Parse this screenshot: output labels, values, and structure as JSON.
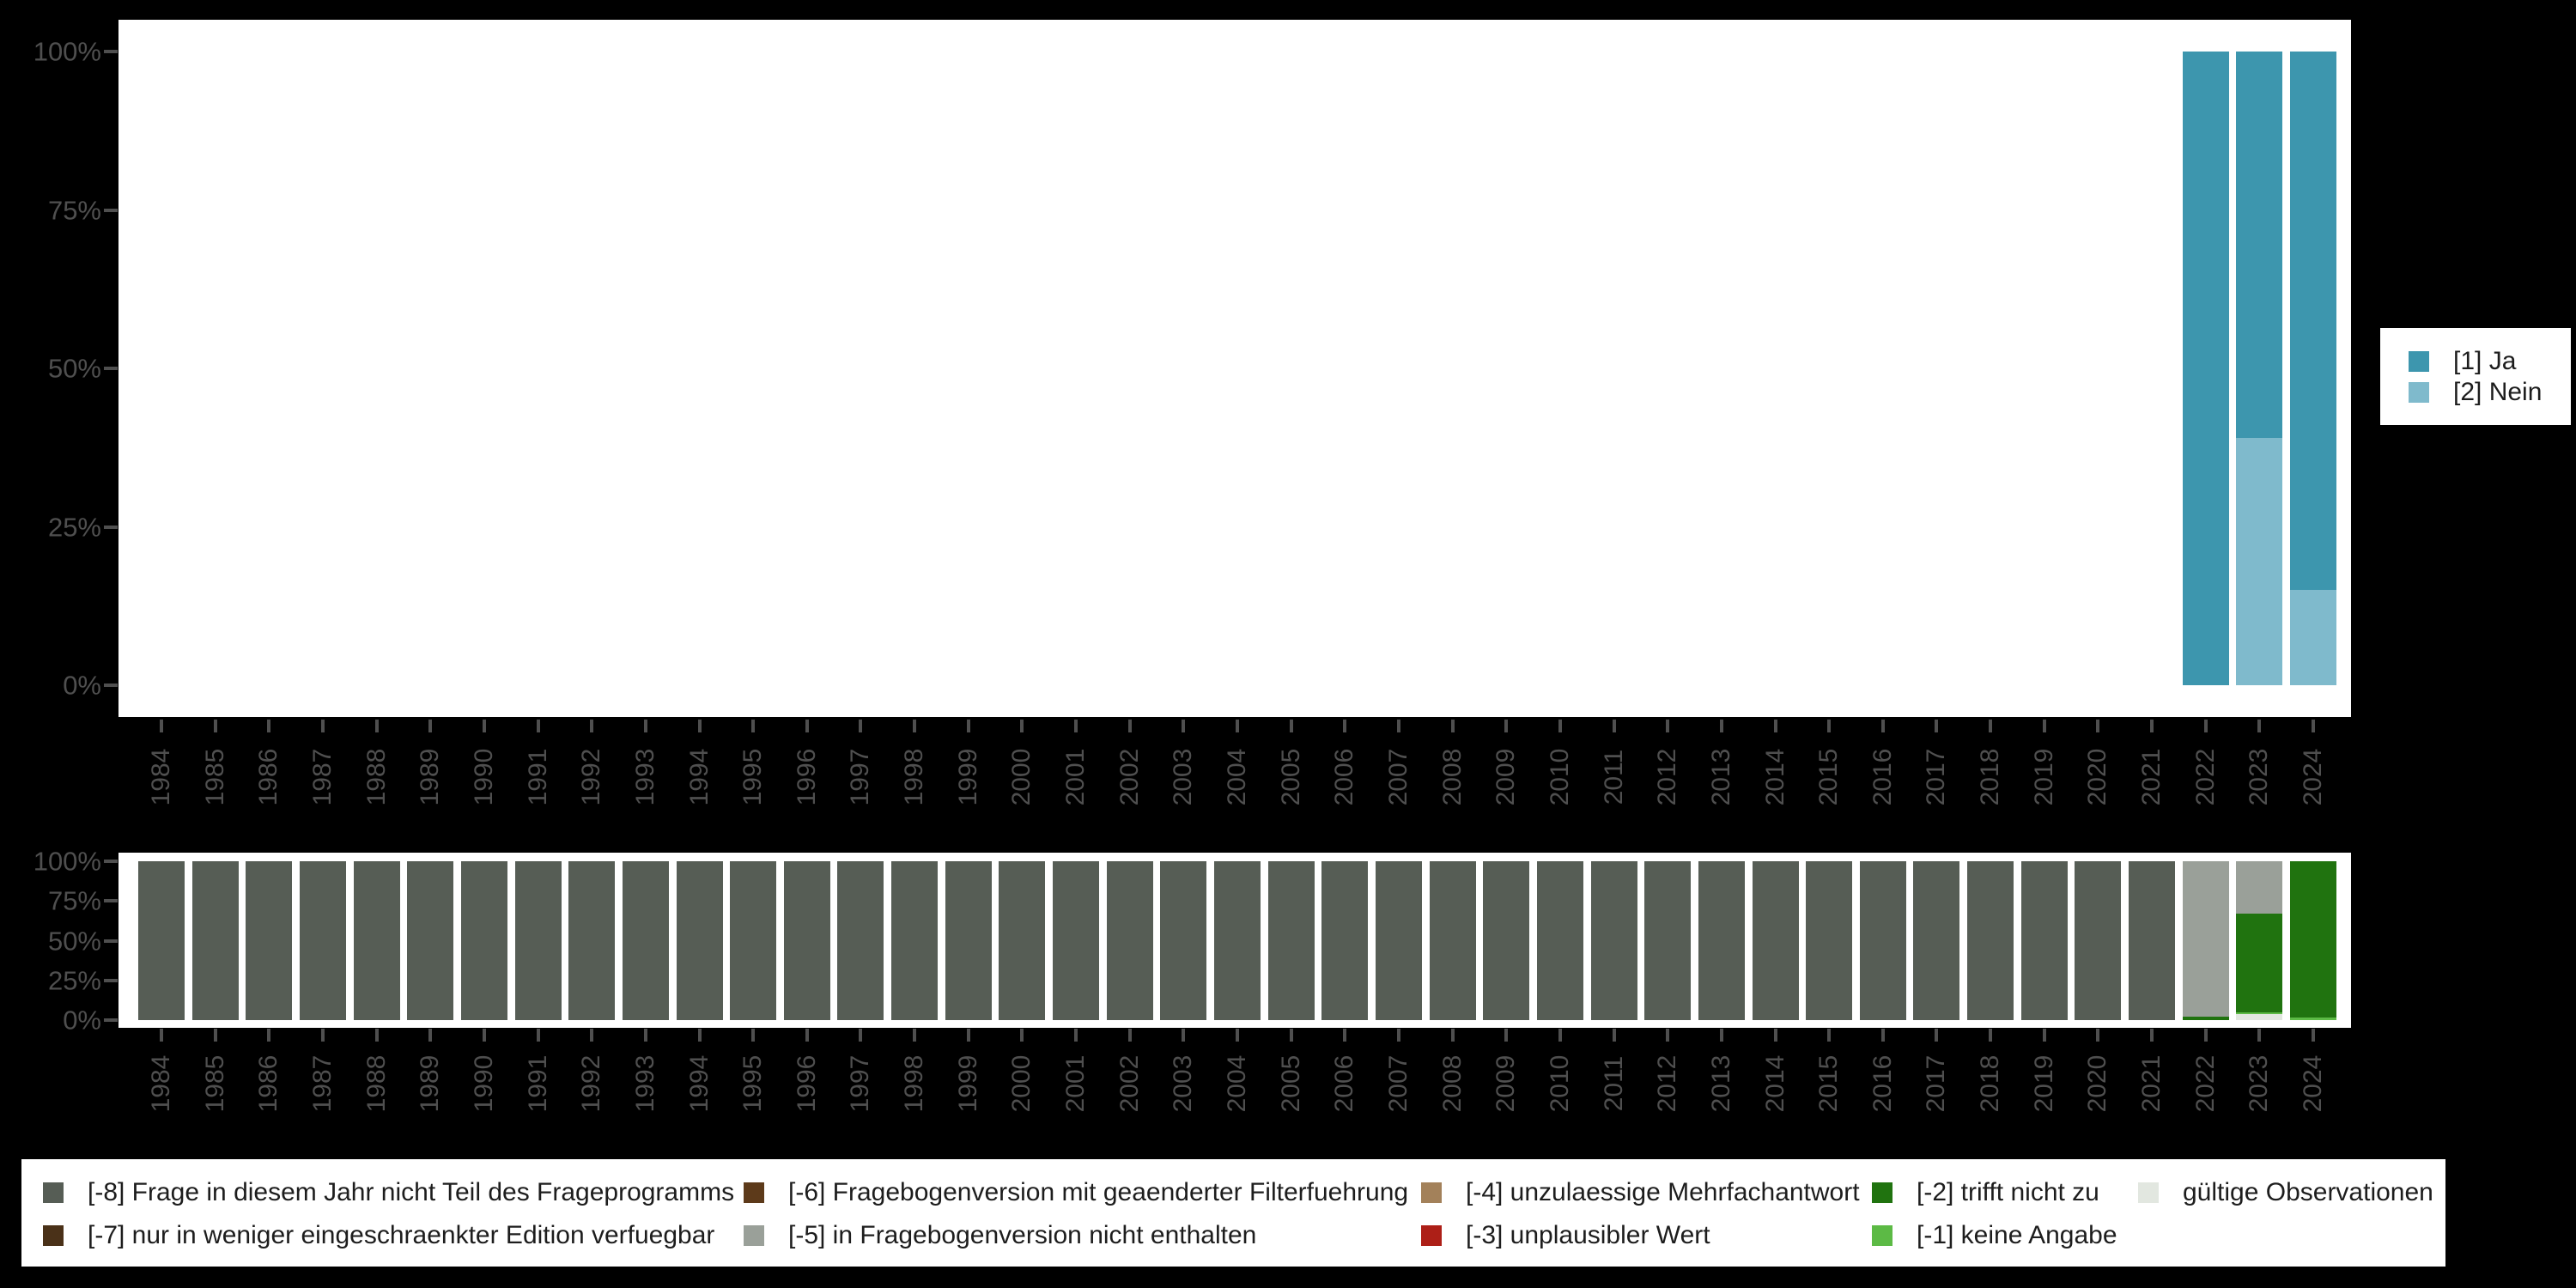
{
  "colors": {
    "background": "#000000",
    "panel": "#ffffff",
    "axis_text": "#4f4f4f",
    "legend_text": "#1d1d1d",
    "legend_background": "#ffffff"
  },
  "y_axis": {
    "tick_labels": [
      "100%",
      "75%",
      "50%",
      "25%",
      "0%"
    ]
  },
  "chart_data": [
    {
      "type": "bar",
      "stacked": true,
      "title": "",
      "xlabel": "",
      "ylabel": "",
      "ylim": [
        0,
        100
      ],
      "grid": false,
      "legend_position": "right",
      "x": [
        1984,
        1985,
        1986,
        1987,
        1988,
        1989,
        1990,
        1991,
        1992,
        1993,
        1994,
        1995,
        1996,
        1997,
        1998,
        1999,
        2000,
        2001,
        2002,
        2003,
        2004,
        2005,
        2006,
        2007,
        2008,
        2009,
        2010,
        2011,
        2012,
        2013,
        2014,
        2015,
        2016,
        2017,
        2018,
        2019,
        2020,
        2021,
        2022,
        2023,
        2024
      ],
      "y_ticks": [
        "100%",
        "75%",
        "50%",
        "25%",
        "0%"
      ],
      "series": [
        {
          "name": "[1] Ja",
          "color": "#3d96ae",
          "values": [
            null,
            null,
            null,
            null,
            null,
            null,
            null,
            null,
            null,
            null,
            null,
            null,
            null,
            null,
            null,
            null,
            null,
            null,
            null,
            null,
            null,
            null,
            null,
            null,
            null,
            null,
            null,
            null,
            null,
            null,
            null,
            null,
            null,
            null,
            null,
            null,
            null,
            null,
            100,
            61,
            85
          ]
        },
        {
          "name": "[2] Nein",
          "color": "#7fbacc",
          "values": [
            null,
            null,
            null,
            null,
            null,
            null,
            null,
            null,
            null,
            null,
            null,
            null,
            null,
            null,
            null,
            null,
            null,
            null,
            null,
            null,
            null,
            null,
            null,
            null,
            null,
            null,
            null,
            null,
            null,
            null,
            null,
            null,
            null,
            null,
            null,
            null,
            null,
            null,
            0,
            39,
            15
          ]
        }
      ]
    },
    {
      "type": "bar",
      "stacked": true,
      "title": "",
      "xlabel": "",
      "ylabel": "",
      "ylim": [
        0,
        100
      ],
      "grid": false,
      "legend_position": "bottom",
      "x": [
        1984,
        1985,
        1986,
        1987,
        1988,
        1989,
        1990,
        1991,
        1992,
        1993,
        1994,
        1995,
        1996,
        1997,
        1998,
        1999,
        2000,
        2001,
        2002,
        2003,
        2004,
        2005,
        2006,
        2007,
        2008,
        2009,
        2010,
        2011,
        2012,
        2013,
        2014,
        2015,
        2016,
        2017,
        2018,
        2019,
        2020,
        2021,
        2022,
        2023,
        2024
      ],
      "y_ticks": [
        "100%",
        "75%",
        "50%",
        "25%",
        "0%"
      ],
      "series": [
        {
          "name": "[-8] Frage in diesem Jahr nicht Teil des Frageprogramms",
          "color": "#565d55",
          "values": [
            100,
            100,
            100,
            100,
            100,
            100,
            100,
            100,
            100,
            100,
            100,
            100,
            100,
            100,
            100,
            100,
            100,
            100,
            100,
            100,
            100,
            100,
            100,
            100,
            100,
            100,
            100,
            100,
            100,
            100,
            100,
            100,
            100,
            100,
            100,
            100,
            100,
            100,
            0,
            0,
            0
          ]
        },
        {
          "name": "[-7] nur in weniger eingeschraenkter Edition verfuegbar",
          "color": "#4a3118",
          "values": [
            0,
            0,
            0,
            0,
            0,
            0,
            0,
            0,
            0,
            0,
            0,
            0,
            0,
            0,
            0,
            0,
            0,
            0,
            0,
            0,
            0,
            0,
            0,
            0,
            0,
            0,
            0,
            0,
            0,
            0,
            0,
            0,
            0,
            0,
            0,
            0,
            0,
            0,
            0,
            0,
            0
          ]
        },
        {
          "name": "[-6] Fragebogenversion mit geaenderter Filterfuehrung",
          "color": "#5d3a1a",
          "values": [
            0,
            0,
            0,
            0,
            0,
            0,
            0,
            0,
            0,
            0,
            0,
            0,
            0,
            0,
            0,
            0,
            0,
            0,
            0,
            0,
            0,
            0,
            0,
            0,
            0,
            0,
            0,
            0,
            0,
            0,
            0,
            0,
            0,
            0,
            0,
            0,
            0,
            0,
            0,
            0,
            0
          ]
        },
        {
          "name": "[-5] in Fragebogenversion nicht enthalten",
          "color": "#9aa099",
          "values": [
            0,
            0,
            0,
            0,
            0,
            0,
            0,
            0,
            0,
            0,
            0,
            0,
            0,
            0,
            0,
            0,
            0,
            0,
            0,
            0,
            0,
            0,
            0,
            0,
            0,
            0,
            0,
            0,
            0,
            0,
            0,
            0,
            0,
            0,
            0,
            0,
            0,
            0,
            98,
            33,
            0
          ]
        },
        {
          "name": "[-4] unzulaessige Mehrfachantwort",
          "color": "#a3815a",
          "values": [
            0,
            0,
            0,
            0,
            0,
            0,
            0,
            0,
            0,
            0,
            0,
            0,
            0,
            0,
            0,
            0,
            0,
            0,
            0,
            0,
            0,
            0,
            0,
            0,
            0,
            0,
            0,
            0,
            0,
            0,
            0,
            0,
            0,
            0,
            0,
            0,
            0,
            0,
            0,
            0,
            0
          ]
        },
        {
          "name": "[-3] unplausibler Wert",
          "color": "#ad1f17",
          "values": [
            0,
            0,
            0,
            0,
            0,
            0,
            0,
            0,
            0,
            0,
            0,
            0,
            0,
            0,
            0,
            0,
            0,
            0,
            0,
            0,
            0,
            0,
            0,
            0,
            0,
            0,
            0,
            0,
            0,
            0,
            0,
            0,
            0,
            0,
            0,
            0,
            0,
            0,
            0,
            0,
            0
          ]
        },
        {
          "name": "[-2] trifft nicht zu",
          "color": "#20730f",
          "values": [
            0,
            0,
            0,
            0,
            0,
            0,
            0,
            0,
            0,
            0,
            0,
            0,
            0,
            0,
            0,
            0,
            0,
            0,
            0,
            0,
            0,
            0,
            0,
            0,
            0,
            0,
            0,
            0,
            0,
            0,
            0,
            0,
            0,
            0,
            0,
            0,
            0,
            0,
            2,
            62,
            98.5
          ]
        },
        {
          "name": "[-1] keine Angabe",
          "color": "#5cba45",
          "values": [
            0,
            0,
            0,
            0,
            0,
            0,
            0,
            0,
            0,
            0,
            0,
            0,
            0,
            0,
            0,
            0,
            0,
            0,
            0,
            0,
            0,
            0,
            0,
            0,
            0,
            0,
            0,
            0,
            0,
            0,
            0,
            0,
            0,
            0,
            0,
            0,
            0,
            0,
            0,
            1,
            1.5
          ]
        },
        {
          "name": "gültige Observationen",
          "color": "#e2e7e0",
          "values": [
            0,
            0,
            0,
            0,
            0,
            0,
            0,
            0,
            0,
            0,
            0,
            0,
            0,
            0,
            0,
            0,
            0,
            0,
            0,
            0,
            0,
            0,
            0,
            0,
            0,
            0,
            0,
            0,
            0,
            0,
            0,
            0,
            0,
            0,
            0,
            0,
            0,
            0,
            0,
            4,
            0
          ]
        }
      ]
    }
  ]
}
